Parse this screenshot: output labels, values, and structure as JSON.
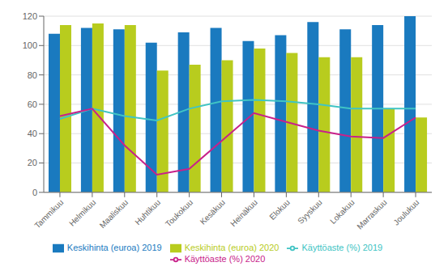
{
  "chart_data": {
    "type": "bar",
    "categories": [
      "Tammikuu",
      "Helmikuu",
      "Maaliskuu",
      "Huhtikuu",
      "Toukokuu",
      "Kesäkuu",
      "Heinäkuu",
      "Elokuu",
      "Syyskuu",
      "Lokakuu",
      "Marraskuu",
      "Joulukuu"
    ],
    "series": [
      {
        "name": "Keskihinta (euroa) 2019",
        "type": "bar",
        "color": "#1a7abf",
        "values": [
          108,
          112,
          111,
          102,
          109,
          112,
          103,
          107,
          116,
          111,
          114,
          120
        ]
      },
      {
        "name": "Keskihinta (euroa) 2020",
        "type": "bar",
        "color": "#b8cc1e",
        "values": [
          114,
          115,
          114,
          83,
          87,
          90,
          98,
          95,
          92,
          92,
          57,
          51
        ]
      },
      {
        "name": "Käyttöaste (%) 2019",
        "type": "line",
        "color": "#40c4c4",
        "values": [
          50,
          57,
          52,
          49,
          57,
          62,
          63,
          62,
          60,
          57,
          57,
          57
        ]
      },
      {
        "name": "Käyttöaste (%) 2020",
        "type": "line",
        "color": "#c8218a",
        "values": [
          52,
          57,
          32,
          12,
          16,
          35,
          54,
          48,
          42,
          38,
          37,
          51
        ]
      }
    ],
    "ylim": [
      0,
      120
    ],
    "yticks": [
      0,
      20,
      40,
      60,
      80,
      100,
      120
    ],
    "grid": true,
    "legend": "bottom"
  }
}
